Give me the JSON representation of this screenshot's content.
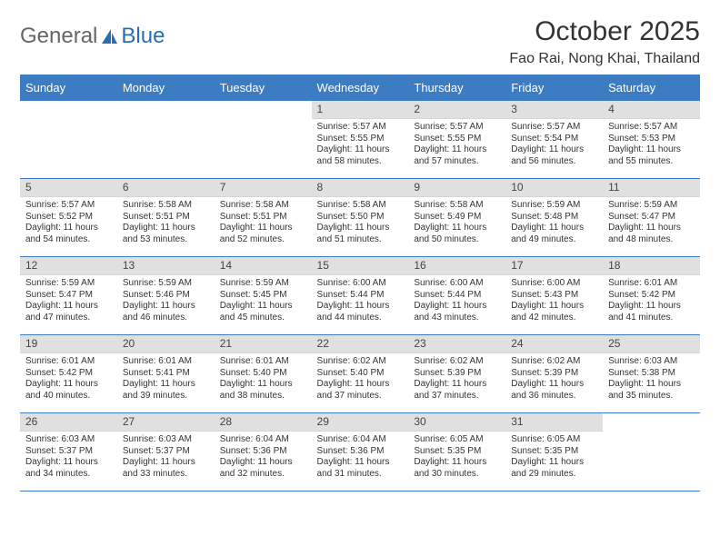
{
  "logo": {
    "general": "General",
    "blue": "Blue"
  },
  "title": "October 2025",
  "subtitle": "Fao Rai, Nong Khai, Thailand",
  "colors": {
    "accent": "#3b7cc2",
    "header_bg": "#3b7cc2",
    "header_text": "#ffffff",
    "daynum_bg": "#e0e0e0",
    "text": "#333333",
    "logo_gray": "#666666",
    "logo_blue": "#2a6db5",
    "page_bg": "#ffffff"
  },
  "columns": [
    "Sunday",
    "Monday",
    "Tuesday",
    "Wednesday",
    "Thursday",
    "Friday",
    "Saturday"
  ],
  "weeks": [
    [
      {
        "day": "",
        "sunrise": "",
        "sunset": "",
        "daylight": ""
      },
      {
        "day": "",
        "sunrise": "",
        "sunset": "",
        "daylight": ""
      },
      {
        "day": "",
        "sunrise": "",
        "sunset": "",
        "daylight": ""
      },
      {
        "day": "1",
        "sunrise": "Sunrise: 5:57 AM",
        "sunset": "Sunset: 5:55 PM",
        "daylight": "Daylight: 11 hours and 58 minutes."
      },
      {
        "day": "2",
        "sunrise": "Sunrise: 5:57 AM",
        "sunset": "Sunset: 5:55 PM",
        "daylight": "Daylight: 11 hours and 57 minutes."
      },
      {
        "day": "3",
        "sunrise": "Sunrise: 5:57 AM",
        "sunset": "Sunset: 5:54 PM",
        "daylight": "Daylight: 11 hours and 56 minutes."
      },
      {
        "day": "4",
        "sunrise": "Sunrise: 5:57 AM",
        "sunset": "Sunset: 5:53 PM",
        "daylight": "Daylight: 11 hours and 55 minutes."
      }
    ],
    [
      {
        "day": "5",
        "sunrise": "Sunrise: 5:57 AM",
        "sunset": "Sunset: 5:52 PM",
        "daylight": "Daylight: 11 hours and 54 minutes."
      },
      {
        "day": "6",
        "sunrise": "Sunrise: 5:58 AM",
        "sunset": "Sunset: 5:51 PM",
        "daylight": "Daylight: 11 hours and 53 minutes."
      },
      {
        "day": "7",
        "sunrise": "Sunrise: 5:58 AM",
        "sunset": "Sunset: 5:51 PM",
        "daylight": "Daylight: 11 hours and 52 minutes."
      },
      {
        "day": "8",
        "sunrise": "Sunrise: 5:58 AM",
        "sunset": "Sunset: 5:50 PM",
        "daylight": "Daylight: 11 hours and 51 minutes."
      },
      {
        "day": "9",
        "sunrise": "Sunrise: 5:58 AM",
        "sunset": "Sunset: 5:49 PM",
        "daylight": "Daylight: 11 hours and 50 minutes."
      },
      {
        "day": "10",
        "sunrise": "Sunrise: 5:59 AM",
        "sunset": "Sunset: 5:48 PM",
        "daylight": "Daylight: 11 hours and 49 minutes."
      },
      {
        "day": "11",
        "sunrise": "Sunrise: 5:59 AM",
        "sunset": "Sunset: 5:47 PM",
        "daylight": "Daylight: 11 hours and 48 minutes."
      }
    ],
    [
      {
        "day": "12",
        "sunrise": "Sunrise: 5:59 AM",
        "sunset": "Sunset: 5:47 PM",
        "daylight": "Daylight: 11 hours and 47 minutes."
      },
      {
        "day": "13",
        "sunrise": "Sunrise: 5:59 AM",
        "sunset": "Sunset: 5:46 PM",
        "daylight": "Daylight: 11 hours and 46 minutes."
      },
      {
        "day": "14",
        "sunrise": "Sunrise: 5:59 AM",
        "sunset": "Sunset: 5:45 PM",
        "daylight": "Daylight: 11 hours and 45 minutes."
      },
      {
        "day": "15",
        "sunrise": "Sunrise: 6:00 AM",
        "sunset": "Sunset: 5:44 PM",
        "daylight": "Daylight: 11 hours and 44 minutes."
      },
      {
        "day": "16",
        "sunrise": "Sunrise: 6:00 AM",
        "sunset": "Sunset: 5:44 PM",
        "daylight": "Daylight: 11 hours and 43 minutes."
      },
      {
        "day": "17",
        "sunrise": "Sunrise: 6:00 AM",
        "sunset": "Sunset: 5:43 PM",
        "daylight": "Daylight: 11 hours and 42 minutes."
      },
      {
        "day": "18",
        "sunrise": "Sunrise: 6:01 AM",
        "sunset": "Sunset: 5:42 PM",
        "daylight": "Daylight: 11 hours and 41 minutes."
      }
    ],
    [
      {
        "day": "19",
        "sunrise": "Sunrise: 6:01 AM",
        "sunset": "Sunset: 5:42 PM",
        "daylight": "Daylight: 11 hours and 40 minutes."
      },
      {
        "day": "20",
        "sunrise": "Sunrise: 6:01 AM",
        "sunset": "Sunset: 5:41 PM",
        "daylight": "Daylight: 11 hours and 39 minutes."
      },
      {
        "day": "21",
        "sunrise": "Sunrise: 6:01 AM",
        "sunset": "Sunset: 5:40 PM",
        "daylight": "Daylight: 11 hours and 38 minutes."
      },
      {
        "day": "22",
        "sunrise": "Sunrise: 6:02 AM",
        "sunset": "Sunset: 5:40 PM",
        "daylight": "Daylight: 11 hours and 37 minutes."
      },
      {
        "day": "23",
        "sunrise": "Sunrise: 6:02 AM",
        "sunset": "Sunset: 5:39 PM",
        "daylight": "Daylight: 11 hours and 37 minutes."
      },
      {
        "day": "24",
        "sunrise": "Sunrise: 6:02 AM",
        "sunset": "Sunset: 5:39 PM",
        "daylight": "Daylight: 11 hours and 36 minutes."
      },
      {
        "day": "25",
        "sunrise": "Sunrise: 6:03 AM",
        "sunset": "Sunset: 5:38 PM",
        "daylight": "Daylight: 11 hours and 35 minutes."
      }
    ],
    [
      {
        "day": "26",
        "sunrise": "Sunrise: 6:03 AM",
        "sunset": "Sunset: 5:37 PM",
        "daylight": "Daylight: 11 hours and 34 minutes."
      },
      {
        "day": "27",
        "sunrise": "Sunrise: 6:03 AM",
        "sunset": "Sunset: 5:37 PM",
        "daylight": "Daylight: 11 hours and 33 minutes."
      },
      {
        "day": "28",
        "sunrise": "Sunrise: 6:04 AM",
        "sunset": "Sunset: 5:36 PM",
        "daylight": "Daylight: 11 hours and 32 minutes."
      },
      {
        "day": "29",
        "sunrise": "Sunrise: 6:04 AM",
        "sunset": "Sunset: 5:36 PM",
        "daylight": "Daylight: 11 hours and 31 minutes."
      },
      {
        "day": "30",
        "sunrise": "Sunrise: 6:05 AM",
        "sunset": "Sunset: 5:35 PM",
        "daylight": "Daylight: 11 hours and 30 minutes."
      },
      {
        "day": "31",
        "sunrise": "Sunrise: 6:05 AM",
        "sunset": "Sunset: 5:35 PM",
        "daylight": "Daylight: 11 hours and 29 minutes."
      },
      {
        "day": "",
        "sunrise": "",
        "sunset": "",
        "daylight": ""
      }
    ]
  ]
}
